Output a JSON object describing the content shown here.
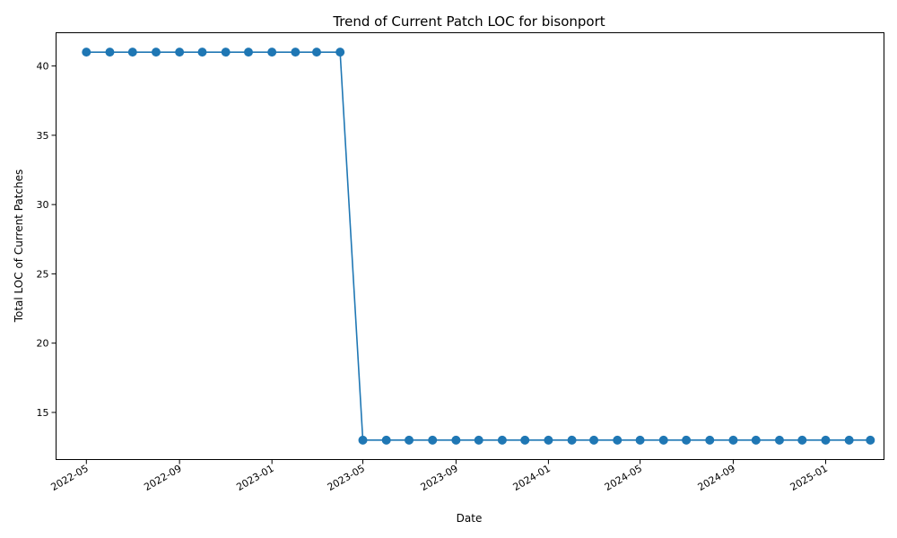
{
  "chart_data": {
    "type": "line",
    "title": "Trend of Current Patch LOC for bisonport",
    "xlabel": "Date",
    "ylabel": "Total LOC of Current Patches",
    "xlim": [
      "2022-03-22",
      "2025-03-19"
    ],
    "ylim": [
      11.6,
      42.4
    ],
    "grid": false,
    "x_ticks": [
      "2022-05",
      "2022-09",
      "2023-01",
      "2023-05",
      "2023-09",
      "2024-01",
      "2024-05",
      "2024-09",
      "2025-01"
    ],
    "y_ticks": [
      15,
      20,
      25,
      30,
      35,
      40
    ],
    "color": "#1f77b4",
    "series": [
      {
        "x": [
          "2022-05-01",
          "2022-06-01",
          "2022-07-01",
          "2022-08-01",
          "2022-09-01",
          "2022-10-01",
          "2022-11-01",
          "2022-12-01",
          "2023-01-01",
          "2023-02-01",
          "2023-03-01",
          "2023-04-01",
          "2023-05-01",
          "2023-06-01",
          "2023-07-01",
          "2023-08-01",
          "2023-09-01",
          "2023-10-01",
          "2023-11-01",
          "2023-12-01",
          "2024-01-01",
          "2024-02-01",
          "2024-03-01",
          "2024-04-01",
          "2024-05-01",
          "2024-06-01",
          "2024-07-01",
          "2024-08-01",
          "2024-09-01",
          "2024-10-01",
          "2024-11-01",
          "2024-12-01",
          "2025-01-01",
          "2025-02-01",
          "2025-03-01"
        ],
        "values": [
          41,
          41,
          41,
          41,
          41,
          41,
          41,
          41,
          41,
          41,
          41,
          41,
          13,
          13,
          13,
          13,
          13,
          13,
          13,
          13,
          13,
          13,
          13,
          13,
          13,
          13,
          13,
          13,
          13,
          13,
          13,
          13,
          13,
          13,
          13
        ]
      }
    ]
  }
}
